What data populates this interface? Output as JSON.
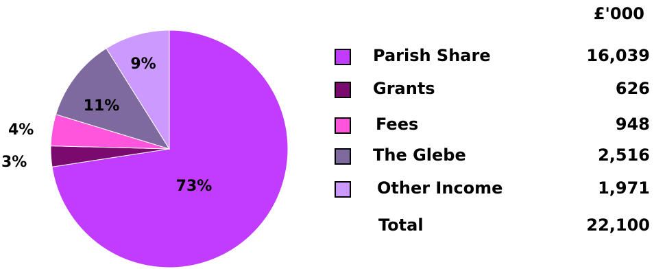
{
  "chart_data": {
    "type": "pie",
    "unit_label": "£'000",
    "slices": [
      {
        "label": "Parish Share",
        "value": 16039,
        "percent_label": "73%",
        "color": "#c13cff"
      },
      {
        "label": "Grants",
        "value": 626,
        "percent_label": "3%",
        "color": "#7a0a6e"
      },
      {
        "label": "Fees",
        "value": 948,
        "percent_label": "4%",
        "color": "#ff55dd"
      },
      {
        "label": "The Glebe",
        "value": 2516,
        "percent_label": "11%",
        "color": "#7f6a9f"
      },
      {
        "label": "Other Income",
        "value": 1971,
        "percent_label": "9%",
        "color": "#cc99ff"
      }
    ],
    "value_labels": [
      "16,039",
      "626",
      "948",
      "2,516",
      "1,971"
    ],
    "total": {
      "label": "Total",
      "value": "22,100"
    }
  }
}
